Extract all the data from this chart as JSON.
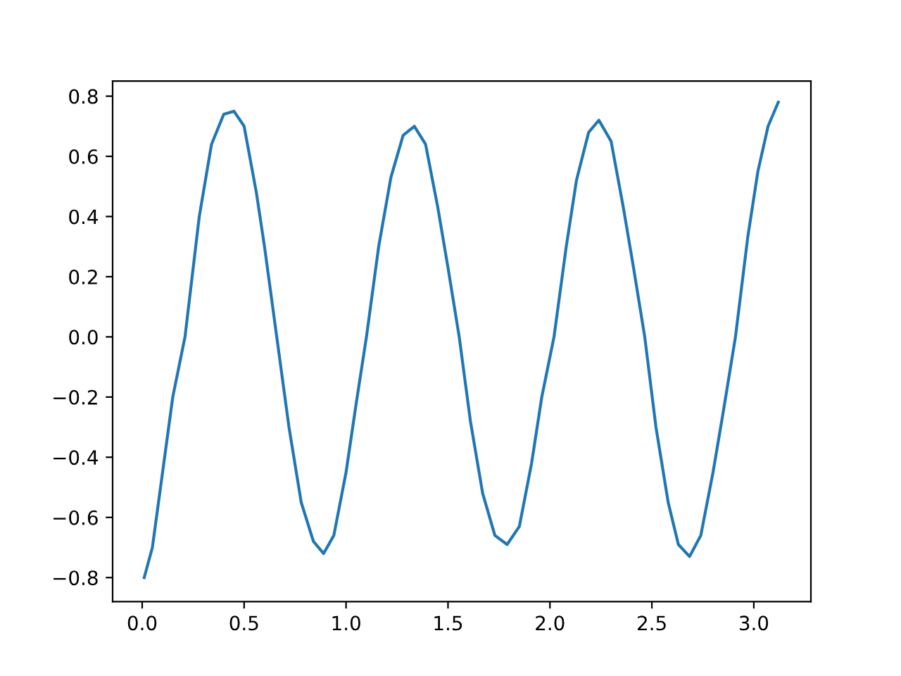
{
  "chart_data": {
    "type": "line",
    "series": [
      {
        "color": "#1f77b4",
        "x": [
          0.01,
          0.05,
          0.1,
          0.15,
          0.21,
          0.28,
          0.34,
          0.4,
          0.45,
          0.5,
          0.56,
          0.6,
          0.66,
          0.72,
          0.78,
          0.84,
          0.89,
          0.94,
          1.0,
          1.05,
          1.1,
          1.16,
          1.22,
          1.28,
          1.335,
          1.39,
          1.45,
          1.5,
          1.555,
          1.61,
          1.67,
          1.73,
          1.79,
          1.85,
          1.91,
          1.96,
          2.02,
          2.08,
          2.13,
          2.19,
          2.24,
          2.3,
          2.36,
          2.41,
          2.465,
          2.52,
          2.58,
          2.63,
          2.685,
          2.74,
          2.8,
          2.85,
          2.91,
          2.97,
          3.02,
          3.07,
          3.12
        ],
        "values": [
          -0.8,
          -0.7,
          -0.45,
          -0.2,
          0.0,
          0.4,
          0.64,
          0.74,
          0.75,
          0.7,
          0.48,
          0.3,
          0.0,
          -0.3,
          -0.55,
          -0.68,
          -0.72,
          -0.66,
          -0.45,
          -0.22,
          0.0,
          0.3,
          0.53,
          0.67,
          0.7,
          0.64,
          0.43,
          0.23,
          0.0,
          -0.28,
          -0.52,
          -0.66,
          -0.69,
          -0.63,
          -0.42,
          -0.2,
          0.0,
          0.3,
          0.52,
          0.68,
          0.72,
          0.65,
          0.43,
          0.23,
          0.0,
          -0.3,
          -0.55,
          -0.69,
          -0.73,
          -0.66,
          -0.45,
          -0.25,
          0.0,
          0.33,
          0.55,
          0.7,
          0.78
        ]
      }
    ],
    "xlim": [
      -0.145,
      3.28
    ],
    "ylim": [
      -0.88,
      0.85
    ],
    "xticks": [
      {
        "value": 0,
        "label": "0.0"
      },
      0.5,
      {
        "value": 1,
        "label": "1.0"
      },
      1.5,
      {
        "value": 2,
        "label": "2.0"
      },
      2.5,
      {
        "value": 3,
        "label": "3.0"
      }
    ],
    "yticks": [
      {
        "value": -0.8,
        "label": "−0.8"
      },
      {
        "value": -0.6,
        "label": "−0.6"
      },
      {
        "value": -0.4,
        "label": "−0.4"
      },
      {
        "value": -0.2,
        "label": "−0.2"
      },
      {
        "value": 0,
        "label": "0.0"
      },
      0.2,
      0.4,
      0.6,
      0.8
    ],
    "grid": false,
    "legend": false
  }
}
